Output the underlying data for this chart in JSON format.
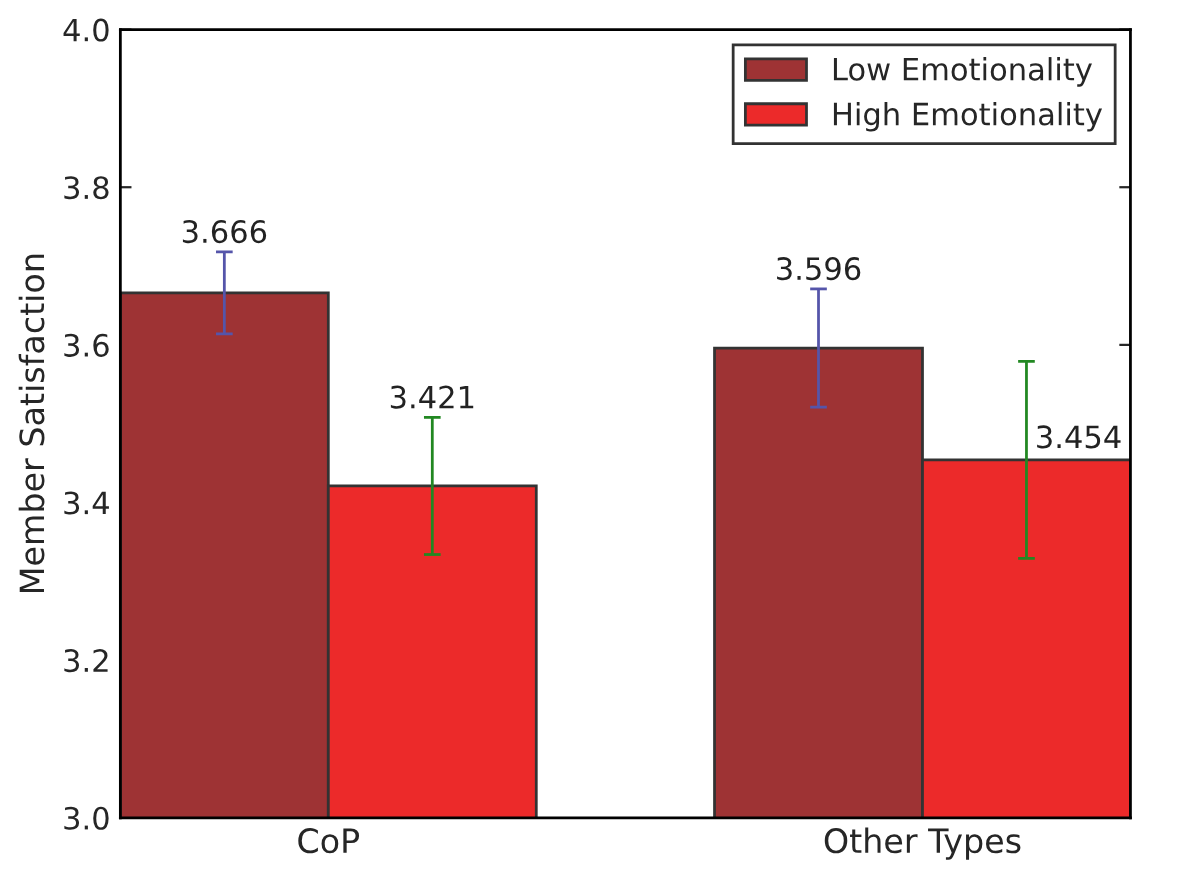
{
  "chart_data": {
    "type": "bar",
    "ylabel": "Member Satisfaction",
    "categories": [
      "CoP",
      "Other Types"
    ],
    "series": [
      {
        "name": "Low Emotionality",
        "color": "#9e3334",
        "values": [
          3.666,
          3.596
        ],
        "errors": [
          0.052,
          0.075
        ]
      },
      {
        "name": "High Emotionality",
        "color": "#ec2a2a",
        "values": [
          3.421,
          3.454
        ],
        "errors": [
          0.087,
          0.125
        ]
      }
    ],
    "ylim": [
      3.0,
      4.0
    ],
    "yticks": [
      {
        "value": 3.0,
        "label": "3.0"
      },
      {
        "value": 3.2,
        "label": "3.2"
      },
      {
        "value": 3.4,
        "label": "3.4"
      },
      {
        "value": 3.6,
        "label": "3.6"
      },
      {
        "value": 3.8,
        "label": "3.8"
      },
      {
        "value": 4.0,
        "label": "4.0"
      }
    ],
    "data_labels": true,
    "legend": "top right",
    "grid": false
  }
}
